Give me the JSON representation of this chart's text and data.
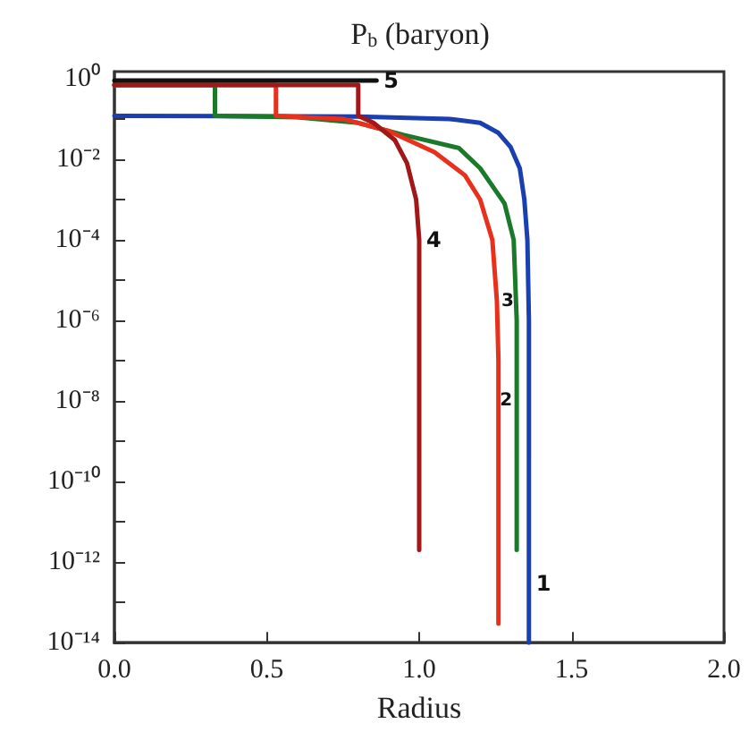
{
  "chart_data": {
    "type": "line",
    "title": "P$_{b}$ (baryon)",
    "xlabel": "Radius",
    "xlim": [
      0,
      2
    ],
    "xticks": [
      {
        "value": 0,
        "label": "0.0"
      },
      0.5,
      {
        "value": 1,
        "label": "1.0"
      },
      1.5,
      {
        "value": 2,
        "label": "2.0"
      }
    ],
    "ylim": [
      1e-14,
      1.5
    ],
    "log": "y",
    "yticks": [
      {
        "value": 1e-14,
        "label": "10⁻¹⁴"
      },
      {
        "value": 1e-13,
        "label": null
      },
      {
        "value": 1e-12,
        "label": "10⁻¹²"
      },
      {
        "value": 1e-11,
        "label": null
      },
      {
        "value": 1e-10,
        "label": "10⁻¹⁰"
      },
      {
        "value": 1e-09,
        "label": null
      },
      {
        "value": 1e-08,
        "label": "10⁻⁸"
      },
      {
        "value": 1e-07,
        "label": null
      },
      {
        "value": 1e-06,
        "label": "10⁻⁶"
      },
      {
        "value": 1e-05,
        "label": null
      },
      {
        "value": 0.0001,
        "label": "10⁻⁴"
      },
      {
        "value": 0.001,
        "label": null
      },
      {
        "value": 0.01,
        "label": "10⁻²"
      },
      {
        "value": 0.1,
        "label": null
      },
      {
        "value": 1,
        "label": "10⁰"
      }
    ],
    "grid": false,
    "marker": "none",
    "line_style": "solid",
    "series": [
      {
        "color": "#1a3fb0",
        "x": [
          0,
          0.8,
          1.1,
          1.2,
          1.26,
          1.3,
          1.33,
          1.345,
          1.355,
          1.36,
          1.36,
          1.36
        ],
        "values": [
          0.12,
          0.115,
          0.1,
          0.08,
          0.045,
          0.02,
          0.006,
          0.001,
          0.0001,
          1e-06,
          3e-13,
          1e-14
        ]
      },
      {
        "color": "#1a7a2a",
        "x": [
          0,
          0.33,
          0.33,
          0.6,
          0.8,
          0.95,
          1.13,
          1.2,
          1.28,
          1.31,
          1.32,
          1.32,
          1.32
        ],
        "values": [
          0.7,
          0.7,
          0.12,
          0.11,
          0.08,
          0.04,
          0.019,
          0.006,
          0.0008,
          0.0001,
          1e-06,
          1e-08,
          2e-12
        ]
      },
      {
        "color": "#e8301c",
        "x": [
          0,
          0.53,
          0.53,
          0.75,
          0.9,
          1.05,
          1.15,
          1.2,
          1.24,
          1.255,
          1.26,
          1.26
        ],
        "values": [
          0.7,
          0.7,
          0.12,
          0.1,
          0.05,
          0.015,
          0.004,
          0.001,
          0.0001,
          3e-06,
          1e-07,
          3e-14
        ]
      },
      {
        "color": "#a01818",
        "x": [
          0,
          0.8,
          0.8,
          0.85,
          0.92,
          0.96,
          0.99,
          1.0,
          1.0
        ],
        "values": [
          0.7,
          0.7,
          0.12,
          0.08,
          0.03,
          0.008,
          0.001,
          0.0001,
          2e-12
        ]
      },
      {
        "color": "#111111",
        "x": [
          0,
          0.86
        ],
        "values": [
          0.9,
          0.9
        ]
      }
    ],
    "annotations": [
      {
        "text": "1",
        "x": 1.36,
        "y": 3e-13
      },
      {
        "text": "2",
        "x": 1.32,
        "y": 1e-08
      },
      {
        "text": "3",
        "x": 1.255,
        "y": 3e-06
      },
      {
        "text": "4",
        "x": 1.0,
        "y": 0.0001
      },
      {
        "text": "5",
        "x": 0.86,
        "y": 0.9
      }
    ]
  }
}
